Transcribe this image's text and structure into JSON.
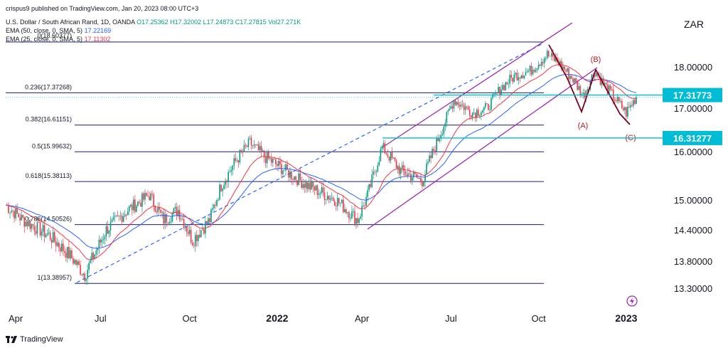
{
  "header": {
    "published": "crispus9 published on TradingView.com, Jan 20, 2023 08:00 UTC+3",
    "symbol": "U.S. Dollar / South African Rand, 1D, OANDA",
    "ohlc": "O17.25362 H17.32002 L17.24873 C17.27815 Vol27.271K",
    "ema50_label": "EMA (50, close, 0, SMA, 5)",
    "ema50_value": "17.22169",
    "ema25_label": "EMA (25, close, 0, SMA, 5)",
    "ema25_value": "17.11302"
  },
  "currency": "ZAR",
  "footer": {
    "brand": "TradingView"
  },
  "colors": {
    "up": "#089981",
    "down": "#f23645",
    "ema50": "#2962ff",
    "ema25": "#f23645",
    "fib": "#1a1f6e",
    "channel": "#9c27b0",
    "wave": "#b71c1c",
    "cyan": "#00bcd4"
  },
  "chart_data": {
    "type": "candlestick",
    "title": "U.S. Dollar / South African Rand, 1D, OANDA",
    "xlabel": "",
    "ylabel": "ZAR",
    "ylim": [
      13.0,
      19.2
    ],
    "price_axis_ticks": [
      "18.00000",
      "17.00000",
      "16.00000",
      "15.00000",
      "14.40000",
      "13.80000",
      "13.30000"
    ],
    "price_axis_values": [
      18.0,
      17.0,
      16.0,
      15.0,
      14.4,
      13.8,
      13.3
    ],
    "time_axis_labels": [
      "Apr",
      "Jul",
      "Oct",
      "2022",
      "Apr",
      "Jul",
      "Oct",
      "2023"
    ],
    "time_axis_index": [
      5,
      66,
      128,
      189,
      248,
      310,
      371,
      432
    ],
    "x_count": 440,
    "closes_anchor_index": [
      0,
      12,
      30,
      45,
      55,
      70,
      85,
      100,
      110,
      120,
      130,
      142,
      150,
      160,
      170,
      180,
      195,
      210,
      230,
      245,
      252,
      262,
      275,
      290,
      300,
      312,
      325,
      335,
      345,
      355,
      365,
      377,
      385,
      395,
      402,
      410,
      418,
      425,
      432,
      436,
      439
    ],
    "closes_anchor_value": [
      14.9,
      14.6,
      14.3,
      13.9,
      13.55,
      14.4,
      14.8,
      15.1,
      14.6,
      14.8,
      14.2,
      14.6,
      15.3,
      15.8,
      16.2,
      15.9,
      15.6,
      15.3,
      15.0,
      14.6,
      15.1,
      16.1,
      15.6,
      15.4,
      16.2,
      17.2,
      16.9,
      17.0,
      17.5,
      17.8,
      17.9,
      18.3,
      18.1,
      17.7,
      17.3,
      17.9,
      17.5,
      17.2,
      16.9,
      17.1,
      17.28
    ],
    "fib_levels": [
      {
        "label": "0.236(17.37268)",
        "value": 17.37268,
        "tag": "0.236"
      },
      {
        "label": "0.382(16.61151)",
        "value": 16.61151,
        "tag": "0.382"
      },
      {
        "label": "0.5(15.99632)",
        "value": 15.99632,
        "tag": "0.5"
      },
      {
        "label": "0.618(15.38113)",
        "value": 15.38113,
        "tag": "0.618"
      },
      {
        "label": "0.786(14.50526)",
        "value": 14.50526,
        "tag": "0.786"
      },
      {
        "label": "1(13.38957)",
        "value": 13.38957,
        "tag": "1"
      }
    ],
    "fib_top_label": "0(18.60377)",
    "fib_top_value": 18.60377,
    "horizontal_levels": [
      {
        "label": "17.31773",
        "value": 17.31773
      },
      {
        "label": "16.31277",
        "value": 16.31277
      }
    ],
    "wave_labels": [
      "(A)",
      "(B)",
      "(C)"
    ],
    "legend": [
      "EMA 50",
      "EMA 25"
    ]
  }
}
